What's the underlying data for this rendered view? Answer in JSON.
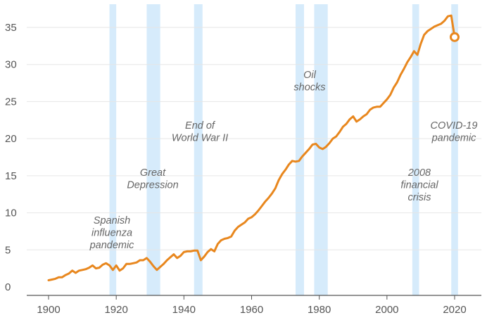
{
  "chart_data": {
    "type": "line",
    "title": "",
    "xlabel": "",
    "ylabel": "",
    "xlim": [
      1895,
      2026
    ],
    "ylim": [
      0,
      37
    ],
    "grid": true,
    "x_ticks": [
      1900,
      1920,
      1940,
      1960,
      1980,
      2000,
      2020
    ],
    "y_ticks": [
      0,
      5,
      10,
      15,
      20,
      25,
      30,
      35
    ],
    "colors": {
      "line": "#e8871e",
      "shading": "#d2e9fb",
      "grid": "#e6e6e6",
      "axis": "#555555"
    },
    "shaded_periods": [
      {
        "from": 1918,
        "to": 1920,
        "label": [
          "Spanish",
          "influenza",
          "pandemic"
        ]
      },
      {
        "from": 1929,
        "to": 1933,
        "label": [
          "Great",
          "Depression"
        ]
      },
      {
        "from": 1943,
        "to": 1945.5,
        "label": [
          "End of",
          "World War II"
        ]
      },
      {
        "from": 1973,
        "to": 1975.5,
        "label": [
          "Oil",
          "shocks"
        ]
      },
      {
        "from": 1978.5,
        "to": 1982.5,
        "label": []
      },
      {
        "from": 2007.5,
        "to": 2009.5,
        "label": [
          "2008",
          "financial",
          "crisis"
        ]
      },
      {
        "from": 2019,
        "to": 2021,
        "label": [
          "COVID-19",
          "pandemic"
        ]
      }
    ],
    "series": [
      {
        "x": [
          1900,
          1901,
          1902,
          1903,
          1904,
          1905,
          1906,
          1907,
          1908,
          1909,
          1910,
          1911,
          1912,
          1913,
          1914,
          1915,
          1916,
          1917,
          1918,
          1919,
          1920,
          1921,
          1922,
          1923,
          1924,
          1925,
          1926,
          1927,
          1928,
          1929,
          1930,
          1931,
          1932,
          1933,
          1934,
          1935,
          1936,
          1937,
          1938,
          1939,
          1940,
          1941,
          1942,
          1943,
          1944,
          1945,
          1946,
          1947,
          1948,
          1949,
          1950,
          1951,
          1952,
          1953,
          1954,
          1955,
          1956,
          1957,
          1958,
          1959,
          1960,
          1961,
          1962,
          1963,
          1964,
          1965,
          1966,
          1967,
          1968,
          1969,
          1970,
          1971,
          1972,
          1973,
          1974,
          1975,
          1976,
          1977,
          1978,
          1979,
          1980,
          1981,
          1982,
          1983,
          1984,
          1985,
          1986,
          1987,
          1988,
          1989,
          1990,
          1991,
          1992,
          1993,
          1994,
          1995,
          1996,
          1997,
          1998,
          1999,
          2000,
          2001,
          2002,
          2003,
          2004,
          2005,
          2006,
          2007,
          2008,
          2009,
          2010,
          2011,
          2012,
          2013,
          2014,
          2015,
          2016,
          2017,
          2018,
          2019,
          2020
        ],
        "values": [
          0.9,
          1.0,
          1.1,
          1.3,
          1.3,
          1.6,
          1.8,
          2.2,
          1.9,
          2.2,
          2.3,
          2.4,
          2.6,
          2.9,
          2.5,
          2.6,
          3.0,
          3.2,
          2.9,
          2.3,
          2.9,
          2.2,
          2.5,
          3.1,
          3.1,
          3.2,
          3.3,
          3.6,
          3.6,
          3.9,
          3.4,
          2.8,
          2.3,
          2.7,
          3.1,
          3.6,
          4.0,
          4.4,
          3.9,
          4.2,
          4.7,
          4.8,
          4.8,
          4.9,
          4.9,
          3.6,
          4.1,
          4.7,
          5.1,
          4.8,
          5.8,
          6.3,
          6.5,
          6.6,
          6.8,
          7.6,
          8.1,
          8.4,
          8.7,
          9.2,
          9.4,
          9.8,
          10.3,
          10.9,
          11.5,
          12.0,
          12.6,
          13.3,
          14.4,
          15.2,
          15.8,
          16.5,
          17.0,
          16.9,
          17.0,
          17.6,
          18.1,
          18.6,
          19.2,
          19.3,
          18.8,
          18.6,
          18.9,
          19.4,
          20.0,
          20.3,
          20.9,
          21.6,
          22.0,
          22.6,
          23.0,
          22.3,
          22.6,
          23.0,
          23.3,
          23.9,
          24.2,
          24.3,
          24.3,
          24.8,
          25.3,
          25.9,
          26.9,
          27.6,
          28.6,
          29.4,
          30.3,
          31.0,
          31.8,
          31.3,
          32.8,
          34.0,
          34.5,
          34.8,
          35.1,
          35.3,
          35.5,
          35.9,
          36.5,
          36.6,
          33.7
        ]
      }
    ]
  }
}
